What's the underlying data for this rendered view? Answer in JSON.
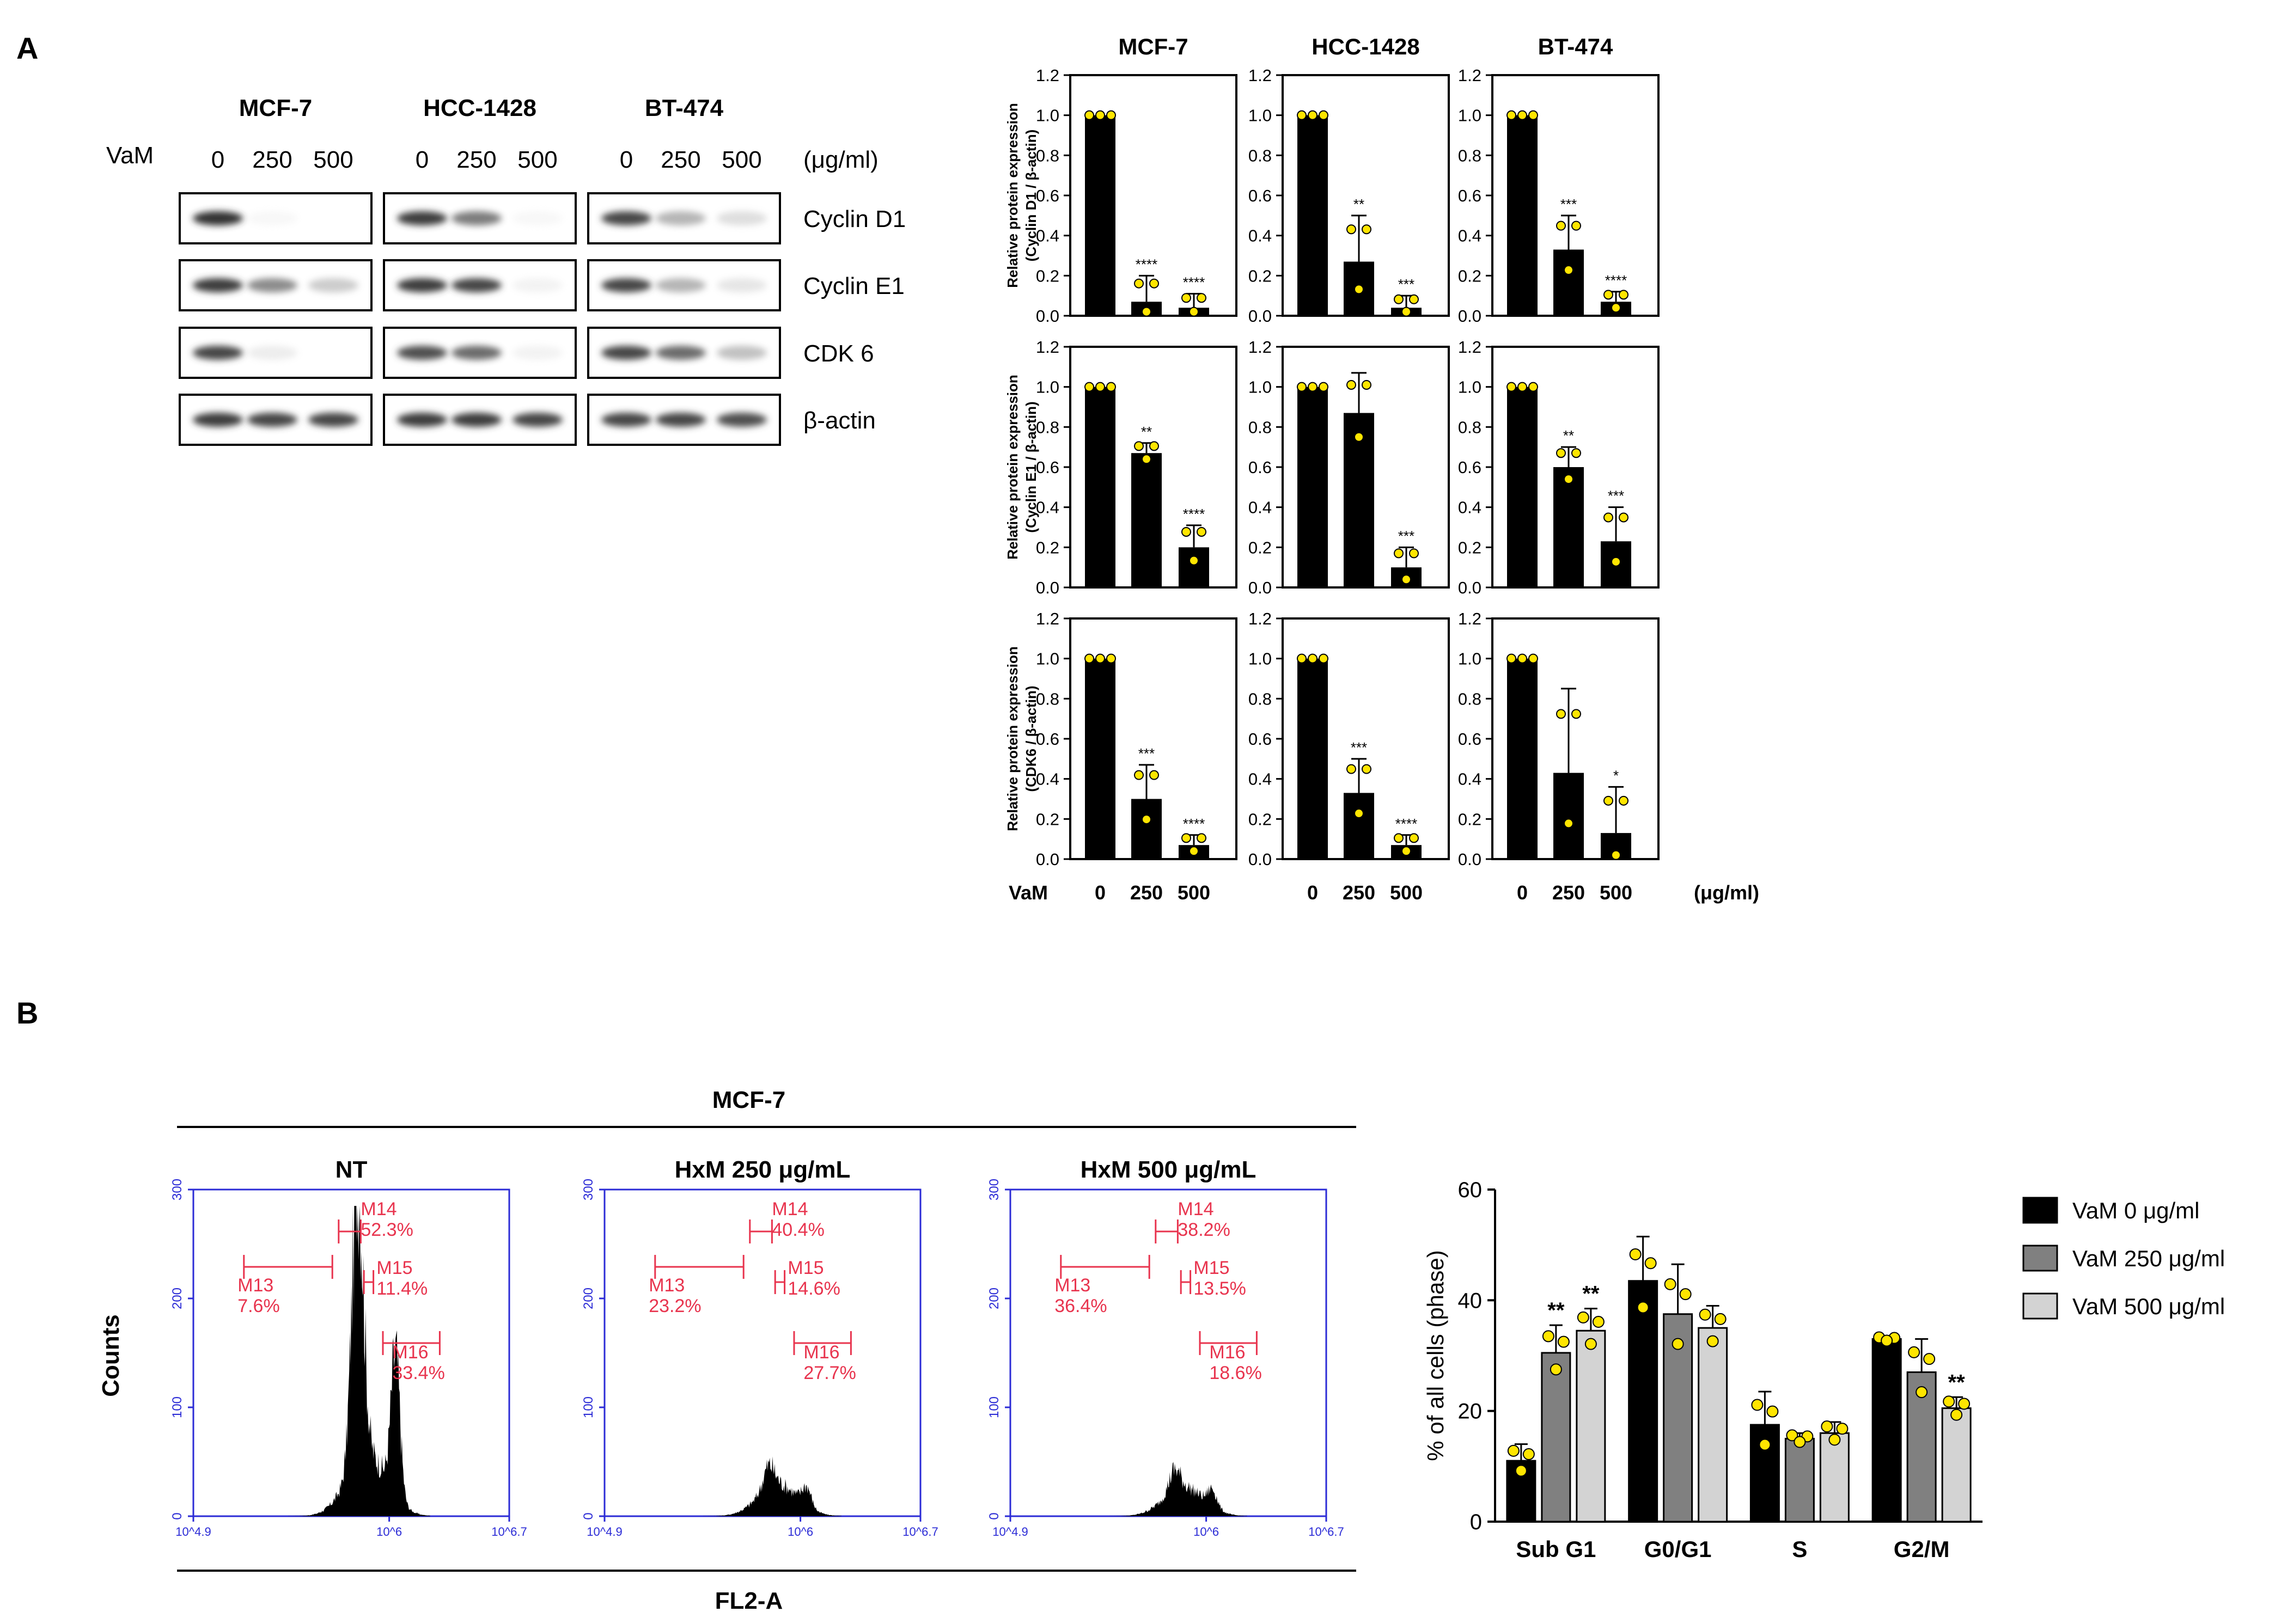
{
  "panel_labels": {
    "a": "A",
    "b": "B"
  },
  "western": {
    "cell_lines": [
      "MCF-7",
      "HCC-1428",
      "BT-474"
    ],
    "treatment_label": "VaM",
    "doses": [
      "0",
      "250",
      "500"
    ],
    "unit": "(μg/ml)",
    "proteins": [
      "Cyclin D1",
      "Cyclin E1",
      "CDK 6",
      "β-actin"
    ],
    "band_intensity": [
      [
        [
          0.95,
          0.05,
          0.02
        ],
        [
          0.9,
          0.65,
          0.05
        ],
        [
          0.85,
          0.45,
          0.25
        ]
      ],
      [
        [
          0.9,
          0.6,
          0.35
        ],
        [
          0.9,
          0.85,
          0.1
        ],
        [
          0.85,
          0.45,
          0.2
        ]
      ],
      [
        [
          0.85,
          0.15,
          0.02
        ],
        [
          0.8,
          0.7,
          0.1
        ],
        [
          0.85,
          0.7,
          0.4
        ]
      ],
      [
        [
          0.9,
          0.85,
          0.85
        ],
        [
          0.9,
          0.9,
          0.85
        ],
        [
          0.85,
          0.85,
          0.8
        ]
      ]
    ]
  },
  "protein_quant": {
    "column_titles": [
      "MCF-7",
      "HCC-1428",
      "BT-474"
    ],
    "row_ylabels": [
      [
        "Relative protein expression",
        "(Cyclin D1 / β-actin)"
      ],
      [
        "Relative protein expression",
        "(Cyclin E1 / β-actin)"
      ],
      [
        "Relative protein expression",
        "(CDK6 / β-actin)"
      ]
    ],
    "x_label": "VaM",
    "x_unit": "(μg/ml)",
    "categories": [
      "0",
      "250",
      "500"
    ],
    "y_ticks": [
      "0.0",
      "0.2",
      "0.4",
      "0.6",
      "0.8",
      "1.0",
      "1.2"
    ]
  },
  "flow": {
    "group_title": "MCF-7",
    "x_title": "FL2-A",
    "y_title": "Counts",
    "y_ticks": [
      "0",
      "100",
      "200",
      "300"
    ],
    "x_ticks": [
      "10^4.9",
      "10^6",
      "10^6.7"
    ],
    "marker_names": [
      "M13",
      "M14",
      "M15",
      "M16"
    ],
    "panels": [
      {
        "title": "NT",
        "m13": "7.6%",
        "m14": "52.3%",
        "m15": "11.4%",
        "m16": "33.4%"
      },
      {
        "title": "HxM 250 μg/mL",
        "m13": "23.2%",
        "m14": "40.4%",
        "m15": "14.6%",
        "m16": "27.7%"
      },
      {
        "title": "HxM 500 μg/mL",
        "m13": "36.4%",
        "m14": "38.2%",
        "m15": "13.5%",
        "m16": "18.6%"
      }
    ]
  },
  "colors": {
    "bar": "#000000",
    "dot": "#ffe500",
    "hist_axis": "#2b2bd6",
    "marker": "#e8344e",
    "gray_mid": "#808080",
    "gray_light": "#d3d3d3"
  },
  "chart_data": [
    {
      "type": "bar",
      "title": "MCF-7",
      "ylabel": "Relative protein expression (Cyclin D1 / β-actin)",
      "categories": [
        "0",
        "250",
        "500"
      ],
      "values": [
        1.0,
        0.07,
        0.04
      ],
      "errors": [
        0,
        0.13,
        0.07
      ],
      "sig": [
        "",
        "****",
        "****"
      ],
      "ylim": [
        0,
        1.2
      ]
    },
    {
      "type": "bar",
      "title": "HCC-1428",
      "categories": [
        "0",
        "250",
        "500"
      ],
      "values": [
        1.0,
        0.27,
        0.04
      ],
      "errors": [
        0,
        0.23,
        0.06
      ],
      "sig": [
        "",
        "**",
        "***"
      ],
      "ylim": [
        0,
        1.2
      ]
    },
    {
      "type": "bar",
      "title": "BT-474",
      "categories": [
        "0",
        "250",
        "500"
      ],
      "values": [
        1.0,
        0.33,
        0.07
      ],
      "errors": [
        0,
        0.17,
        0.05
      ],
      "sig": [
        "",
        "***",
        "****"
      ],
      "ylim": [
        0,
        1.2
      ]
    },
    {
      "type": "bar",
      "ylabel": "Relative protein expression (Cyclin E1 / β-actin)",
      "categories": [
        "0",
        "250",
        "500"
      ],
      "values": [
        1.0,
        0.67,
        0.2
      ],
      "errors": [
        0,
        0.05,
        0.11
      ],
      "sig": [
        "",
        "**",
        "****"
      ],
      "ylim": [
        0,
        1.2
      ]
    },
    {
      "type": "bar",
      "categories": [
        "0",
        "250",
        "500"
      ],
      "values": [
        1.0,
        0.87,
        0.1
      ],
      "errors": [
        0,
        0.2,
        0.1
      ],
      "sig": [
        "",
        "",
        "***"
      ],
      "ylim": [
        0,
        1.2
      ]
    },
    {
      "type": "bar",
      "categories": [
        "0",
        "250",
        "500"
      ],
      "values": [
        1.0,
        0.6,
        0.23
      ],
      "errors": [
        0,
        0.1,
        0.17
      ],
      "sig": [
        "",
        "**",
        "***"
      ],
      "ylim": [
        0,
        1.2
      ]
    },
    {
      "type": "bar",
      "ylabel": "Relative protein expression (CDK6 / β-actin)",
      "categories": [
        "0",
        "250",
        "500"
      ],
      "values": [
        1.0,
        0.3,
        0.07
      ],
      "errors": [
        0,
        0.17,
        0.05
      ],
      "sig": [
        "",
        "***",
        "****"
      ],
      "ylim": [
        0,
        1.2
      ]
    },
    {
      "type": "bar",
      "categories": [
        "0",
        "250",
        "500"
      ],
      "values": [
        1.0,
        0.33,
        0.07
      ],
      "errors": [
        0,
        0.17,
        0.05
      ],
      "sig": [
        "",
        "***",
        "****"
      ],
      "ylim": [
        0,
        1.2
      ]
    },
    {
      "type": "bar",
      "categories": [
        "0",
        "250",
        "500"
      ],
      "values": [
        1.0,
        0.43,
        0.13
      ],
      "errors": [
        0,
        0.42,
        0.23
      ],
      "sig": [
        "",
        "",
        "*"
      ],
      "ylim": [
        0,
        1.2
      ]
    },
    {
      "type": "bar",
      "ylabel": "% of all cells (phase)",
      "categories": [
        "Sub G1",
        "G0/G1",
        "S",
        "G2/M"
      ],
      "ylim": [
        0,
        60
      ],
      "y_ticks": [
        "0",
        "20",
        "40",
        "60"
      ],
      "series": [
        {
          "name": "VaM 0 μg/ml",
          "values": [
            11,
            43.5,
            17.5,
            33
          ],
          "errors": [
            3,
            8,
            6,
            0.5
          ],
          "sig": [
            "",
            "",
            "",
            ""
          ]
        },
        {
          "name": "VaM 250 μg/ml",
          "values": [
            30.5,
            37.5,
            15,
            27
          ],
          "errors": [
            5,
            9,
            1,
            6
          ],
          "sig": [
            "**",
            "",
            "",
            ""
          ]
        },
        {
          "name": "VaM 500 μg/ml",
          "values": [
            34.5,
            35,
            16,
            20.5
          ],
          "errors": [
            4,
            4,
            2,
            2
          ],
          "sig": [
            "**",
            "",
            "",
            "**"
          ]
        }
      ]
    }
  ]
}
